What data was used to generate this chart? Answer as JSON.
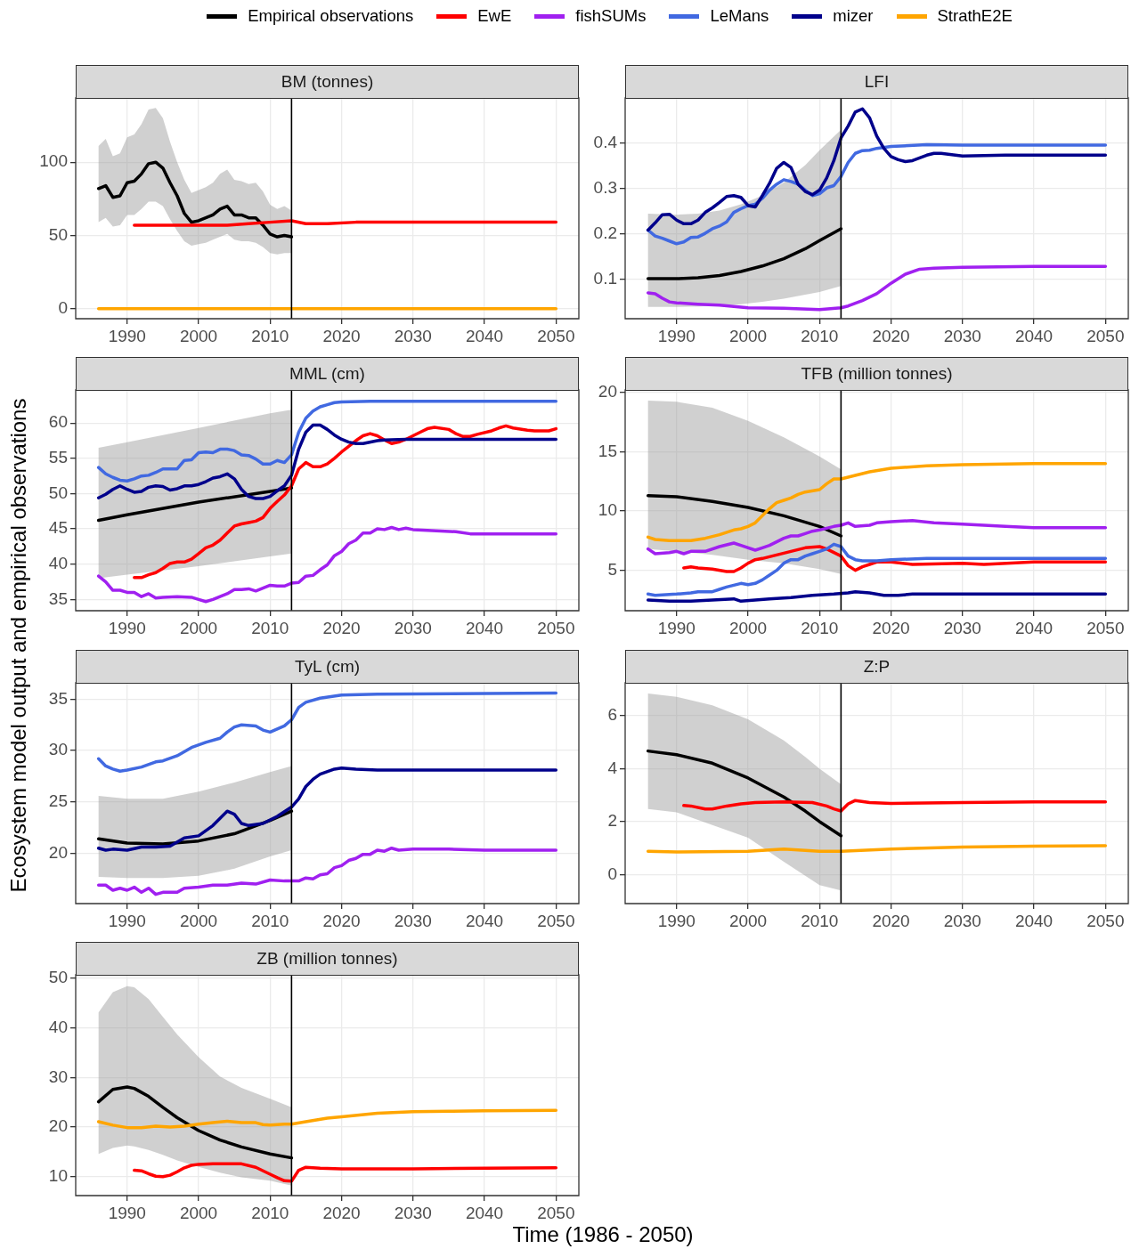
{
  "chart_data": [
    {
      "type": "line",
      "title": "BM (tonnes)",
      "legend": "top",
      "xlim": [
        1982.8,
        2053.2
      ],
      "xticks": [
        1990,
        2000,
        2010,
        2020,
        2030,
        2040,
        2050
      ],
      "ylim": [
        -6.9,
        143.9
      ],
      "yticks": [
        0,
        50,
        100
      ],
      "grid": true,
      "ref_lines": [
        {
          "axis": "x",
          "value": 2013,
          "color": "#000000"
        }
      ],
      "series": [
        {
          "name": "Empirical observations",
          "color": "#000000",
          "x": [
            1986,
            1987,
            1988,
            1989,
            1990,
            1991,
            1992,
            1993,
            1994,
            1995,
            1996,
            1997,
            1998,
            1999,
            2000,
            2001,
            2002,
            2003,
            2004,
            2005,
            2006,
            2007,
            2008,
            2009,
            2010,
            2011,
            2012,
            2013
          ],
          "values": [
            82,
            84,
            76,
            77,
            86,
            87,
            92,
            99,
            100,
            96,
            86,
            77,
            65,
            59,
            60,
            62,
            64,
            68,
            70,
            64,
            64,
            62,
            62,
            57,
            51,
            49,
            50,
            49
          ],
          "upper": [
            111,
            116,
            104,
            106,
            117,
            119,
            126,
            136,
            137,
            130,
            114,
            100,
            88,
            79,
            81,
            83,
            86,
            92,
            95,
            88,
            87,
            85,
            86,
            80,
            71,
            68,
            70,
            67
          ],
          "lower": [
            59,
            62,
            56,
            57,
            64,
            64,
            68,
            73,
            73,
            70,
            61,
            53,
            46,
            43,
            44,
            45,
            47,
            49,
            51,
            47,
            46,
            46,
            45,
            42,
            38,
            37,
            38,
            38
          ]
        },
        {
          "name": "EwE",
          "color": "#ff0000",
          "x": [
            1991,
            1995,
            2000,
            2004,
            2007,
            2010,
            2013,
            2015,
            2018,
            2022,
            2030,
            2040,
            2050
          ],
          "values": [
            57,
            57,
            57,
            57,
            58,
            59,
            60,
            58,
            58,
            59,
            59,
            59,
            59
          ]
        },
        {
          "name": "StrathE2E",
          "color": "#ffa500",
          "x": [
            1986,
            2050
          ],
          "values": [
            0,
            0
          ]
        }
      ]
    },
    {
      "type": "line",
      "title": "LFI",
      "legend": "top",
      "xlim": [
        1982.8,
        2053.2
      ],
      "xticks": [
        1990,
        2000,
        2010,
        2020,
        2030,
        2040,
        2050
      ],
      "ylim": [
        0.014,
        0.5
      ],
      "yticks": [
        0.1,
        0.2,
        0.3,
        0.4
      ],
      "grid": true,
      "ref_lines": [
        {
          "axis": "x",
          "value": 2013,
          "color": "#000000"
        }
      ],
      "series": [
        {
          "name": "Empirical observations",
          "color": "#000000",
          "x": [
            1986,
            1990,
            1993,
            1996,
            1999,
            2002,
            2005,
            2008,
            2010,
            2013
          ],
          "values": [
            0.102,
            0.102,
            0.104,
            0.109,
            0.118,
            0.13,
            0.146,
            0.168,
            0.186,
            0.212
          ],
          "upper": [
            0.245,
            0.243,
            0.245,
            0.252,
            0.266,
            0.285,
            0.314,
            0.352,
            0.385,
            0.43
          ],
          "lower": [
            0.04,
            0.04,
            0.041,
            0.043,
            0.046,
            0.051,
            0.058,
            0.067,
            0.073,
            0.086
          ]
        },
        {
          "name": "fishSUMs",
          "color": "#a020f0",
          "x": [
            1986,
            1987,
            1988,
            1989,
            1990,
            1993,
            1996,
            2000,
            2005,
            2010,
            2013,
            2014,
            2016,
            2018,
            2020,
            2022,
            2024,
            2026,
            2030,
            2040,
            2050
          ],
          "values": [
            0.071,
            0.069,
            0.059,
            0.051,
            0.049,
            0.046,
            0.044,
            0.038,
            0.037,
            0.034,
            0.038,
            0.042,
            0.054,
            0.069,
            0.092,
            0.112,
            0.123,
            0.125,
            0.127,
            0.129,
            0.129
          ]
        },
        {
          "name": "LeMans",
          "color": "#4169e1",
          "x": [
            1986,
            1987,
            1988,
            1989,
            1990,
            1991,
            1992,
            1993,
            1994,
            1995,
            1996,
            1997,
            1998,
            1999,
            2000,
            2001,
            2002,
            2003,
            2004,
            2005,
            2006,
            2007,
            2008,
            2009,
            2010,
            2011,
            2012,
            2013,
            2014,
            2015,
            2016,
            2017,
            2018,
            2020,
            2025,
            2030,
            2050
          ],
          "values": [
            0.209,
            0.196,
            0.191,
            0.185,
            0.179,
            0.183,
            0.193,
            0.194,
            0.202,
            0.212,
            0.218,
            0.227,
            0.248,
            0.256,
            0.263,
            0.266,
            0.279,
            0.297,
            0.31,
            0.32,
            0.316,
            0.31,
            0.297,
            0.285,
            0.289,
            0.302,
            0.307,
            0.327,
            0.358,
            0.378,
            0.384,
            0.385,
            0.389,
            0.393,
            0.397,
            0.396,
            0.396
          ]
        },
        {
          "name": "mizer",
          "color": "#00008b",
          "x": [
            1986,
            1987,
            1988,
            1989,
            1990,
            1991,
            1992,
            1993,
            1994,
            1995,
            1996,
            1997,
            1998,
            1999,
            2000,
            2001,
            2002,
            2003,
            2004,
            2005,
            2006,
            2007,
            2008,
            2009,
            2010,
            2011,
            2012,
            2013,
            2014,
            2015,
            2016,
            2017,
            2018,
            2019,
            2020,
            2021,
            2022,
            2023,
            2024,
            2025,
            2026,
            2027,
            2030,
            2036,
            2050
          ],
          "values": [
            0.209,
            0.225,
            0.243,
            0.244,
            0.231,
            0.223,
            0.223,
            0.231,
            0.248,
            0.258,
            0.27,
            0.283,
            0.285,
            0.281,
            0.263,
            0.26,
            0.285,
            0.312,
            0.345,
            0.358,
            0.347,
            0.31,
            0.294,
            0.287,
            0.297,
            0.324,
            0.362,
            0.412,
            0.438,
            0.469,
            0.476,
            0.456,
            0.416,
            0.389,
            0.371,
            0.364,
            0.36,
            0.362,
            0.368,
            0.374,
            0.378,
            0.378,
            0.372,
            0.374,
            0.374
          ]
        }
      ]
    },
    {
      "type": "line",
      "title": "MML (cm)",
      "ylabel": "Ecosystem model output and empirical observations",
      "legend": "top",
      "xlim": [
        1982.8,
        2053.2
      ],
      "xticks": [
        1990,
        2000,
        2010,
        2020,
        2030,
        2040,
        2050
      ],
      "ylim": [
        33.4,
        64.7
      ],
      "yticks": [
        35,
        40,
        45,
        50,
        55,
        60
      ],
      "grid": true,
      "ref_lines": [
        {
          "axis": "x",
          "value": 2013,
          "color": "#000000"
        }
      ],
      "series": [
        {
          "name": "Empirical observations",
          "color": "#000000",
          "x": [
            1986,
            1990,
            2000,
            2010,
            2013
          ],
          "values": [
            46.2,
            47.0,
            48.8,
            50.3,
            50.8
          ],
          "upper": [
            56.5,
            57.3,
            59.3,
            61.4,
            61.9
          ],
          "lower": [
            38.0,
            38.5,
            39.7,
            41.1,
            41.5
          ]
        },
        {
          "name": "EwE",
          "color": "#ff0000",
          "x": [
            1991,
            1992,
            1993,
            1994,
            1995,
            1996,
            1997,
            1998,
            1999,
            2000,
            2001,
            2002,
            2003,
            2004,
            2005,
            2006,
            2007,
            2008,
            2009,
            2010,
            2011,
            2012,
            2013,
            2014,
            2015,
            2016,
            2017,
            2018,
            2019,
            2020,
            2021,
            2022,
            2023,
            2024,
            2025,
            2026,
            2027,
            2028,
            2029,
            2030,
            2031,
            2032,
            2033,
            2035,
            2036,
            2037,
            2038,
            2039,
            2041,
            2042,
            2043,
            2044,
            2046,
            2047,
            2049,
            2050
          ],
          "values": [
            38.1,
            38.1,
            38.5,
            38.8,
            39.4,
            40.1,
            40.3,
            40.3,
            40.7,
            41.5,
            42.3,
            42.7,
            43.4,
            44.4,
            45.4,
            45.7,
            45.9,
            46.1,
            46.6,
            47.9,
            48.9,
            49.8,
            51.1,
            53.5,
            54.4,
            53.8,
            53.8,
            54.2,
            55.0,
            55.9,
            56.7,
            57.5,
            58.2,
            58.5,
            58.2,
            57.6,
            57.1,
            57.3,
            57.7,
            58.2,
            58.7,
            59.2,
            59.4,
            59.1,
            58.5,
            58.1,
            58.1,
            58.4,
            58.9,
            59.3,
            59.6,
            59.3,
            59.0,
            58.9,
            58.9,
            59.2
          ]
        },
        {
          "name": "fishSUMs",
          "color": "#a020f0",
          "x": [
            1986,
            1987,
            1988,
            1989,
            1990,
            1991,
            1992,
            1993,
            1994,
            1995,
            1997,
            1999,
            2000,
            2001,
            2002,
            2003,
            2004,
            2005,
            2006,
            2007,
            2008,
            2009,
            2010,
            2011,
            2012,
            2013,
            2014,
            2015,
            2016,
            2017,
            2018,
            2019,
            2020,
            2021,
            2022,
            2023,
            2024,
            2025,
            2026,
            2027,
            2028,
            2029,
            2030,
            2032,
            2036,
            2038,
            2050
          ],
          "values": [
            38.3,
            37.5,
            36.3,
            36.3,
            36.0,
            36.0,
            35.4,
            35.8,
            35.2,
            35.3,
            35.4,
            35.3,
            35.0,
            34.7,
            35.0,
            35.4,
            35.8,
            36.4,
            36.4,
            36.5,
            36.2,
            36.6,
            37.0,
            36.9,
            36.9,
            37.3,
            37.4,
            38.3,
            38.4,
            39.2,
            39.9,
            41.2,
            41.8,
            42.9,
            43.4,
            44.4,
            44.4,
            45.0,
            44.9,
            45.2,
            44.9,
            45.1,
            44.9,
            44.8,
            44.6,
            44.3,
            44.3
          ]
        },
        {
          "name": "LeMans",
          "color": "#4169e1",
          "x": [
            1986,
            1987,
            1988,
            1989,
            1990,
            1991,
            1992,
            1993,
            1994,
            1995,
            1996,
            1997,
            1998,
            1999,
            2000,
            2001,
            2002,
            2003,
            2004,
            2005,
            2006,
            2007,
            2008,
            2009,
            2010,
            2011,
            2012,
            2013,
            2014,
            2015,
            2016,
            2017,
            2018,
            2019,
            2020,
            2024,
            2050
          ],
          "values": [
            53.7,
            52.8,
            52.3,
            51.9,
            51.8,
            52.1,
            52.5,
            52.6,
            53.0,
            53.5,
            53.5,
            53.5,
            54.7,
            54.8,
            55.8,
            55.9,
            55.8,
            56.3,
            56.3,
            56.1,
            55.5,
            55.4,
            54.9,
            54.2,
            54.2,
            54.7,
            54.4,
            55.5,
            58.7,
            60.7,
            61.7,
            62.3,
            62.6,
            62.9,
            63.0,
            63.1,
            63.1
          ]
        },
        {
          "name": "mizer",
          "color": "#00008b",
          "x": [
            1986,
            1987,
            1988,
            1989,
            1990,
            1991,
            1992,
            1993,
            1994,
            1995,
            1996,
            1997,
            1998,
            1999,
            2000,
            2001,
            2002,
            2003,
            2004,
            2005,
            2006,
            2007,
            2008,
            2009,
            2010,
            2011,
            2012,
            2013,
            2014,
            2015,
            2016,
            2017,
            2018,
            2019,
            2020,
            2021,
            2022,
            2023,
            2025,
            2026,
            2029,
            2050
          ],
          "values": [
            49.4,
            49.9,
            50.6,
            51.1,
            50.6,
            50.2,
            50.3,
            50.9,
            51.1,
            51.0,
            50.5,
            50.7,
            51.1,
            51.1,
            51.3,
            51.7,
            52.2,
            52.4,
            52.8,
            52.1,
            50.6,
            49.6,
            49.3,
            49.3,
            49.6,
            50.4,
            51.1,
            52.6,
            56.3,
            58.7,
            59.7,
            59.7,
            59.1,
            58.3,
            57.7,
            57.3,
            57.1,
            57.1,
            57.5,
            57.6,
            57.7,
            57.7
          ]
        }
      ]
    },
    {
      "type": "line",
      "title": "TFB (million tonnes)",
      "legend": "top",
      "xlim": [
        1982.8,
        2053.2
      ],
      "xticks": [
        1990,
        2000,
        2010,
        2020,
        2030,
        2040,
        2050
      ],
      "ylim": [
        1.6,
        20.2
      ],
      "yticks": [
        5,
        10,
        15,
        20
      ],
      "grid": true,
      "ref_lines": [
        {
          "axis": "x",
          "value": 2013,
          "color": "#000000"
        }
      ],
      "series": [
        {
          "name": "Empirical observations",
          "color": "#000000",
          "x": [
            1986,
            1990,
            1995,
            2000,
            2005,
            2010,
            2013
          ],
          "values": [
            11.3,
            11.2,
            10.8,
            10.3,
            9.6,
            8.7,
            7.9
          ],
          "upper": [
            19.3,
            19.2,
            18.7,
            17.6,
            16.2,
            14.6,
            13.5
          ],
          "lower": [
            6.8,
            6.6,
            6.3,
            5.9,
            5.6,
            5.1,
            4.7
          ]
        },
        {
          "name": "EwE",
          "color": "#ff0000",
          "x": [
            1991,
            1992,
            1993,
            1995,
            1997,
            1998,
            1999,
            2000,
            2001,
            2002,
            2004,
            2006,
            2008,
            2010,
            2011,
            2012,
            2013,
            2014,
            2015,
            2016,
            2017,
            2018,
            2020,
            2023,
            2030,
            2033,
            2040,
            2050
          ],
          "values": [
            5.2,
            5.3,
            5.2,
            5.1,
            4.9,
            4.9,
            5.2,
            5.6,
            5.9,
            6.0,
            6.3,
            6.6,
            6.9,
            7.0,
            6.8,
            6.5,
            6.2,
            5.4,
            5.0,
            5.3,
            5.5,
            5.7,
            5.7,
            5.5,
            5.6,
            5.5,
            5.7,
            5.7
          ]
        },
        {
          "name": "fishSUMs",
          "color": "#a020f0",
          "x": [
            1986,
            1987,
            1989,
            1990,
            1991,
            1992,
            1994,
            1996,
            1998,
            1999,
            2001,
            2002,
            2003,
            2004,
            2005,
            2006,
            2007,
            2008,
            2009,
            2010,
            2012,
            2013,
            2014,
            2015,
            2017,
            2018,
            2020,
            2023,
            2026,
            2030,
            2036,
            2040,
            2050
          ],
          "values": [
            6.8,
            6.4,
            6.5,
            6.6,
            6.4,
            6.6,
            6.6,
            7.0,
            7.3,
            7.1,
            6.7,
            6.9,
            7.1,
            7.4,
            7.7,
            7.9,
            7.9,
            8.1,
            8.3,
            8.4,
            8.7,
            8.8,
            9.0,
            8.7,
            8.8,
            9.0,
            9.1,
            9.2,
            9.0,
            8.9,
            8.7,
            8.6,
            8.6
          ]
        },
        {
          "name": "LeMans",
          "color": "#4169e1",
          "x": [
            1986,
            1987,
            1990,
            1992,
            1993,
            1995,
            1996,
            1997,
            1999,
            2000,
            2001,
            2002,
            2003,
            2004,
            2005,
            2006,
            2007,
            2008,
            2009,
            2010,
            2011,
            2012,
            2013,
            2014,
            2015,
            2016,
            2018,
            2020,
            2025,
            2050
          ],
          "values": [
            3.0,
            2.9,
            3.0,
            3.1,
            3.2,
            3.2,
            3.4,
            3.6,
            3.9,
            3.8,
            3.9,
            4.2,
            4.6,
            5.0,
            5.6,
            5.9,
            5.9,
            6.2,
            6.4,
            6.6,
            6.8,
            7.2,
            7.0,
            6.2,
            5.9,
            5.8,
            5.8,
            5.9,
            6.0,
            6.0
          ]
        },
        {
          "name": "mizer",
          "color": "#00008b",
          "x": [
            1986,
            1989,
            1992,
            1995,
            1998,
            1999,
            2001,
            2003,
            2006,
            2009,
            2012,
            2014,
            2015,
            2017,
            2019,
            2021,
            2023,
            2050
          ],
          "values": [
            2.5,
            2.4,
            2.4,
            2.5,
            2.6,
            2.4,
            2.5,
            2.6,
            2.7,
            2.9,
            3.0,
            3.1,
            3.2,
            3.1,
            2.9,
            2.9,
            3.0,
            3.0
          ]
        },
        {
          "name": "StrathE2E",
          "color": "#ffa500",
          "x": [
            1986,
            1987,
            1989,
            1992,
            1994,
            1996,
            1998,
            1999,
            2000,
            2001,
            2002,
            2003,
            2004,
            2005,
            2006,
            2007,
            2008,
            2010,
            2011,
            2012,
            2013,
            2015,
            2017,
            2020,
            2025,
            2030,
            2040,
            2050
          ],
          "values": [
            7.8,
            7.6,
            7.5,
            7.5,
            7.7,
            8.0,
            8.4,
            8.5,
            8.7,
            9.0,
            9.6,
            10.2,
            10.7,
            10.9,
            11.1,
            11.4,
            11.6,
            11.8,
            12.3,
            12.7,
            12.7,
            13.0,
            13.3,
            13.6,
            13.8,
            13.9,
            14.0,
            14.0
          ]
        }
      ]
    },
    {
      "type": "line",
      "title": "TyL (cm)",
      "legend": "top",
      "xlim": [
        1982.8,
        2053.2
      ],
      "xticks": [
        1990,
        2000,
        2010,
        2020,
        2030,
        2040,
        2050
      ],
      "ylim": [
        15.1,
        36.6
      ],
      "yticks": [
        20,
        25,
        30,
        35
      ],
      "grid": true,
      "ref_lines": [
        {
          "axis": "x",
          "value": 2013,
          "color": "#000000"
        }
      ],
      "series": [
        {
          "name": "Empirical observations",
          "color": "#000000",
          "x": [
            1986,
            1990,
            1995,
            2000,
            2005,
            2010,
            2013
          ],
          "values": [
            21.4,
            21.0,
            20.9,
            21.2,
            21.9,
            23.2,
            24.1
          ],
          "upper": [
            25.6,
            25.3,
            25.3,
            26.0,
            26.9,
            27.9,
            28.5
          ],
          "lower": [
            17.7,
            17.6,
            17.6,
            17.8,
            18.5,
            19.7,
            20.3
          ]
        },
        {
          "name": "fishSUMs",
          "color": "#a020f0",
          "x": [
            1986,
            1987,
            1988,
            1989,
            1990,
            1991,
            1992,
            1993,
            1994,
            1995,
            1997,
            1998,
            2000,
            2002,
            2004,
            2006,
            2008,
            2010,
            2012,
            2013,
            2014,
            2015,
            2016,
            2017,
            2018,
            2019,
            2020,
            2021,
            2022,
            2023,
            2024,
            2025,
            2026,
            2027,
            2028,
            2030,
            2035,
            2040,
            2050
          ],
          "values": [
            16.9,
            16.9,
            16.4,
            16.6,
            16.4,
            16.7,
            16.2,
            16.6,
            16.0,
            16.2,
            16.2,
            16.6,
            16.7,
            16.9,
            16.9,
            17.1,
            17.0,
            17.4,
            17.3,
            17.3,
            17.3,
            17.6,
            17.5,
            17.9,
            18.0,
            18.6,
            18.8,
            19.3,
            19.5,
            19.9,
            19.9,
            20.3,
            20.2,
            20.5,
            20.3,
            20.4,
            20.4,
            20.3,
            20.3
          ]
        },
        {
          "name": "LeMans",
          "color": "#4169e1",
          "x": [
            1986,
            1987,
            1988,
            1989,
            1990,
            1992,
            1994,
            1995,
            1997,
            1999,
            2001,
            2003,
            2004,
            2005,
            2006,
            2008,
            2009,
            2010,
            2011,
            2012,
            2013,
            2014,
            2015,
            2017,
            2020,
            2025,
            2050
          ],
          "values": [
            29.2,
            28.5,
            28.2,
            28.0,
            28.1,
            28.4,
            28.9,
            29.0,
            29.5,
            30.3,
            30.8,
            31.2,
            31.8,
            32.3,
            32.5,
            32.4,
            32.0,
            31.8,
            32.1,
            32.4,
            33.0,
            34.2,
            34.7,
            35.1,
            35.4,
            35.5,
            35.6
          ]
        },
        {
          "name": "mizer",
          "color": "#00008b",
          "x": [
            1986,
            1987,
            1988,
            1990,
            1992,
            1994,
            1996,
            1998,
            2000,
            2002,
            2004,
            2005,
            2006,
            2007,
            2009,
            2011,
            2013,
            2014,
            2015,
            2016,
            2017,
            2019,
            2020,
            2022,
            2025,
            2030,
            2050
          ],
          "values": [
            20.5,
            20.3,
            20.4,
            20.3,
            20.6,
            20.6,
            20.7,
            21.5,
            21.7,
            22.7,
            24.1,
            23.8,
            22.9,
            22.7,
            22.9,
            23.6,
            24.5,
            25.3,
            26.5,
            27.2,
            27.7,
            28.2,
            28.3,
            28.2,
            28.1,
            28.1,
            28.1
          ]
        }
      ]
    },
    {
      "type": "line",
      "title": "Z:P",
      "legend": "top",
      "xlim": [
        1982.8,
        2053.2
      ],
      "xticks": [
        1990,
        2000,
        2010,
        2020,
        2030,
        2040,
        2050
      ],
      "ylim": [
        -1.1,
        7.25
      ],
      "yticks": [
        0,
        2,
        4,
        6
      ],
      "grid": true,
      "ref_lines": [
        {
          "axis": "x",
          "value": 2013,
          "color": "#000000"
        }
      ],
      "series": [
        {
          "name": "Empirical observations",
          "color": "#000000",
          "x": [
            1986,
            1990,
            1995,
            2000,
            2005,
            2008,
            2010,
            2013
          ],
          "values": [
            4.67,
            4.53,
            4.21,
            3.65,
            2.93,
            2.4,
            2.0,
            1.47
          ],
          "upper": [
            6.85,
            6.72,
            6.4,
            5.87,
            5.07,
            4.45,
            4.0,
            3.41
          ],
          "lower": [
            2.48,
            2.35,
            1.87,
            1.39,
            0.48,
            -0.05,
            -0.4,
            -0.6
          ]
        },
        {
          "name": "EwE",
          "color": "#ff0000",
          "x": [
            1991,
            1992,
            1994,
            1995,
            1997,
            1999,
            2001,
            2005,
            2009,
            2011,
            2012,
            2013,
            2014,
            2015,
            2017,
            2020,
            2030,
            2040,
            2050
          ],
          "values": [
            2.61,
            2.59,
            2.48,
            2.48,
            2.59,
            2.67,
            2.72,
            2.75,
            2.72,
            2.59,
            2.48,
            2.4,
            2.67,
            2.8,
            2.72,
            2.69,
            2.72,
            2.75,
            2.75
          ]
        },
        {
          "name": "StrathE2E",
          "color": "#ffa500",
          "x": [
            1986,
            1990,
            2000,
            2005,
            2010,
            2013,
            2020,
            2030,
            2040,
            2050
          ],
          "values": [
            0.88,
            0.85,
            0.88,
            0.96,
            0.88,
            0.88,
            0.96,
            1.04,
            1.07,
            1.09
          ]
        }
      ]
    },
    {
      "type": "line",
      "title": "ZB (million tonnes)",
      "xlabel": "Time (1986 - 2050)",
      "legend": "top",
      "xlim": [
        1982.8,
        2053.2
      ],
      "xticks": [
        1990,
        2000,
        2010,
        2020,
        2030,
        2040,
        2050
      ],
      "ylim": [
        6.2,
        50.7
      ],
      "yticks": [
        10,
        20,
        30,
        40,
        50
      ],
      "grid": true,
      "ref_lines": [
        {
          "axis": "x",
          "value": 2013,
          "color": "#000000"
        }
      ],
      "series": [
        {
          "name": "Empirical observations",
          "color": "#000000",
          "x": [
            1986,
            1988,
            1990,
            1991,
            1993,
            1995,
            1997,
            2000,
            2003,
            2006,
            2010,
            2013
          ],
          "values": [
            25.1,
            27.6,
            28.1,
            27.8,
            26.2,
            24.0,
            21.9,
            19.3,
            17.4,
            16.0,
            14.6,
            13.8
          ],
          "upper": [
            43.1,
            47.2,
            48.4,
            48.2,
            45.8,
            42.2,
            38.7,
            34.1,
            30.2,
            27.9,
            25.7,
            24.0
          ],
          "lower": [
            14.6,
            15.8,
            16.3,
            16.1,
            15.4,
            14.4,
            13.3,
            12.0,
            10.8,
            9.9,
            9.2,
            8.2
          ]
        },
        {
          "name": "EwE",
          "color": "#ff0000",
          "x": [
            1991,
            1992,
            1993,
            1994,
            1995,
            1996,
            1997,
            1998,
            1999,
            2000,
            2002,
            2004,
            2006,
            2008,
            2010,
            2011,
            2012,
            2013,
            2014,
            2015,
            2017,
            2020,
            2030,
            2040,
            2050
          ],
          "values": [
            11.3,
            11.2,
            10.6,
            10.1,
            10.0,
            10.3,
            11.0,
            11.8,
            12.3,
            12.5,
            12.6,
            12.6,
            12.6,
            11.9,
            10.5,
            9.8,
            9.2,
            9.1,
            11.3,
            11.9,
            11.7,
            11.6,
            11.6,
            11.7,
            11.8
          ]
        },
        {
          "name": "StrathE2E",
          "color": "#ffa500",
          "x": [
            1986,
            1988,
            1990,
            1992,
            1994,
            1996,
            1998,
            2000,
            2002,
            2004,
            2006,
            2008,
            2009,
            2010,
            2012,
            2013,
            2015,
            2018,
            2020,
            2025,
            2030,
            2035,
            2040,
            2050
          ],
          "values": [
            21.1,
            20.4,
            19.9,
            19.9,
            20.2,
            20.0,
            20.2,
            20.6,
            20.9,
            21.2,
            20.9,
            20.9,
            20.5,
            20.4,
            20.6,
            20.6,
            21.1,
            21.8,
            22.1,
            22.8,
            23.1,
            23.2,
            23.3,
            23.4
          ]
        }
      ]
    }
  ]
}
